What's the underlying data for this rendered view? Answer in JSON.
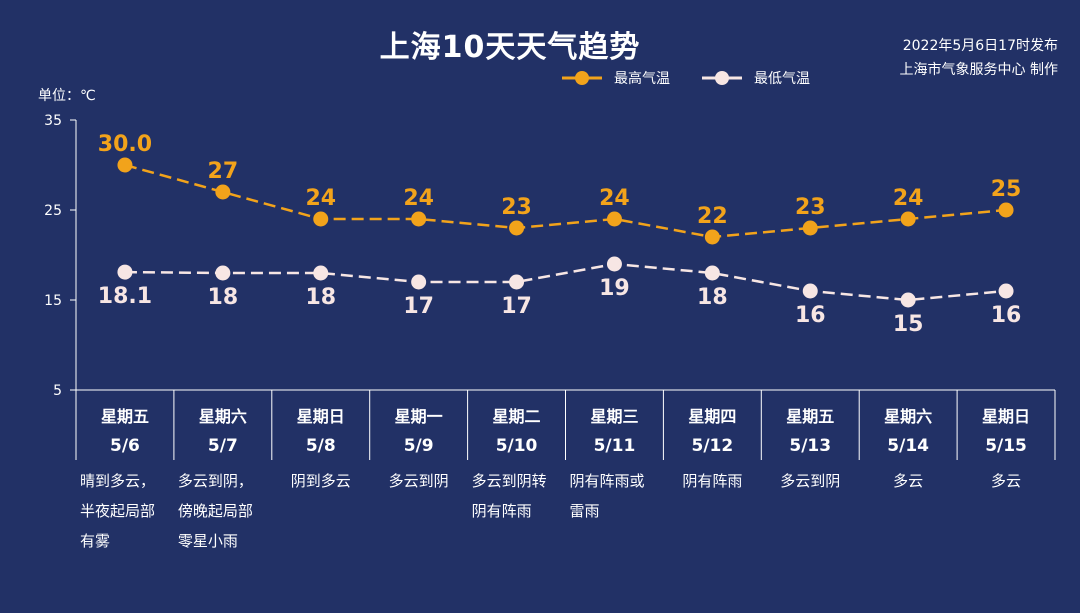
{
  "title": "上海10天天气趋势",
  "issue": {
    "line1": "2022年5月6日17时发布",
    "line2": "上海市气象服务中心 制作"
  },
  "unit_label": "单位：℃",
  "colors": {
    "background": "#223166",
    "high": "#F2A31B",
    "low": "#F7E6E4",
    "text": "#FFFFFF"
  },
  "chart_data": {
    "type": "line",
    "ylim": [
      5,
      35
    ],
    "yticks": [
      5,
      15,
      25,
      35
    ],
    "legend_position": "top-right",
    "categories": [
      {
        "weekday": "星期五",
        "date": "5/6",
        "weather": [
          "晴到多云，",
          "半夜起局部",
          "有雾"
        ]
      },
      {
        "weekday": "星期六",
        "date": "5/7",
        "weather": [
          "多云到阴，",
          "傍晚起局部",
          "零星小雨"
        ]
      },
      {
        "weekday": "星期日",
        "date": "5/8",
        "weather": [
          "阴到多云"
        ]
      },
      {
        "weekday": "星期一",
        "date": "5/9",
        "weather": [
          "多云到阴"
        ]
      },
      {
        "weekday": "星期二",
        "date": "5/10",
        "weather": [
          "多云到阴转",
          "阴有阵雨"
        ]
      },
      {
        "weekday": "星期三",
        "date": "5/11",
        "weather": [
          "阴有阵雨或",
          "雷雨"
        ]
      },
      {
        "weekday": "星期四",
        "date": "5/12",
        "weather": [
          "阴有阵雨"
        ]
      },
      {
        "weekday": "星期五",
        "date": "5/13",
        "weather": [
          "多云到阴"
        ]
      },
      {
        "weekday": "星期六",
        "date": "5/14",
        "weather": [
          "多云"
        ]
      },
      {
        "weekday": "星期日",
        "date": "5/15",
        "weather": [
          "多云"
        ]
      }
    ],
    "series": [
      {
        "name": "最高气温",
        "values": [
          30.0,
          27,
          24,
          24,
          23,
          24,
          22,
          23,
          24,
          25
        ],
        "labels": [
          "30.0",
          "27",
          "24",
          "24",
          "23",
          "24",
          "22",
          "23",
          "24",
          "25"
        ]
      },
      {
        "name": "最低气温",
        "values": [
          18.1,
          18,
          18,
          17,
          17,
          19,
          18,
          16,
          15,
          16
        ],
        "labels": [
          "18.1",
          "18",
          "18",
          "17",
          "17",
          "19",
          "18",
          "16",
          "15",
          "16"
        ]
      }
    ]
  }
}
